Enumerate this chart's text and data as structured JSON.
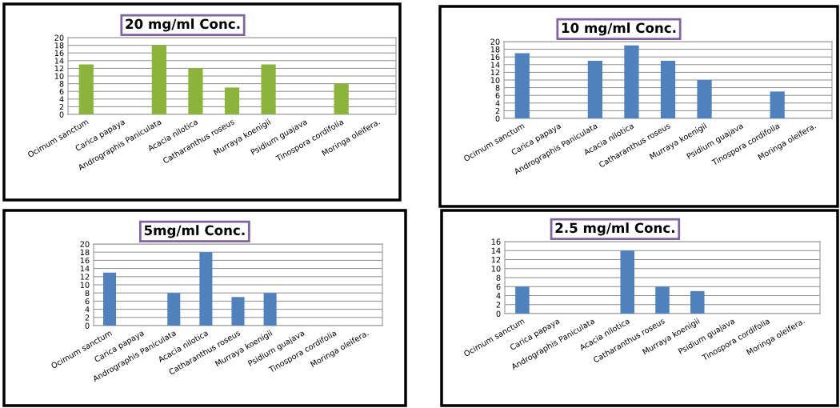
{
  "chart_data": [
    {
      "type": "bar",
      "title": "20 mg/ml Conc.",
      "categories": [
        "Ocimum sanctum",
        "Carica papaya",
        "Andrographis Paniculata",
        "Acacia nilotica",
        "Catharanthus roseus",
        "Murraya koenigii",
        "Psidium guajava",
        "Tinospora cordifolia",
        "Moringa oleifera."
      ],
      "values": [
        13,
        0,
        18,
        12,
        7,
        13,
        0,
        8,
        0
      ],
      "color": "#8db43a",
      "ylim": [
        0,
        20
      ],
      "yticks": [
        0,
        2,
        4,
        6,
        8,
        10,
        12,
        14,
        16,
        18,
        20
      ],
      "grid": "y"
    },
    {
      "type": "bar",
      "title": "10 mg/ml Conc.",
      "categories": [
        "Ocimum sanctum",
        "Carica papaya",
        "Andrographis Paniculata",
        "Acacia nilotica",
        "Catharanthus roseus",
        "Murraya koenigii",
        "Psidium guajava",
        "Tinospora cordifolia",
        "Moringa oleifera."
      ],
      "values": [
        17,
        0,
        15,
        19,
        15,
        10,
        0,
        7,
        0
      ],
      "color": "#4f81bd",
      "ylim": [
        0,
        20
      ],
      "yticks": [
        0,
        2,
        4,
        6,
        8,
        10,
        12,
        14,
        16,
        18,
        20
      ],
      "grid": "y"
    },
    {
      "type": "bar",
      "title": "5mg/ml Conc.",
      "categories": [
        "Ocimum sanctum",
        "Carica papaya",
        "Andrographis Paniculata",
        "Acacia nilotica",
        "Catharanthus roseus",
        "Murraya koenigii",
        "Psidium guajava",
        "Tinospora cordifolia",
        "Moringa oleifera."
      ],
      "values": [
        13,
        0,
        8,
        18,
        7,
        8,
        0,
        0,
        0
      ],
      "color": "#4f81bd",
      "ylim": [
        0,
        20
      ],
      "yticks": [
        0,
        2,
        4,
        6,
        8,
        10,
        12,
        14,
        16,
        18,
        20
      ],
      "grid": "y"
    },
    {
      "type": "bar",
      "title": "2.5 mg/ml Conc.",
      "categories": [
        "Ocimum sanctum",
        "Carica papaya",
        "Andrographis Paniculata",
        "Acacia nilotica",
        "Catharanthus roseus",
        "Murraya koenigii",
        "Psidium guajava",
        "Tinospora cordifolia",
        "Moringa oleifera."
      ],
      "values": [
        6,
        0,
        0,
        14,
        6,
        5,
        0,
        0,
        0
      ],
      "color": "#4f81bd",
      "ylim": [
        0,
        16
      ],
      "yticks": [
        0,
        2,
        4,
        6,
        8,
        10,
        12,
        14,
        16
      ],
      "grid": "y"
    }
  ]
}
